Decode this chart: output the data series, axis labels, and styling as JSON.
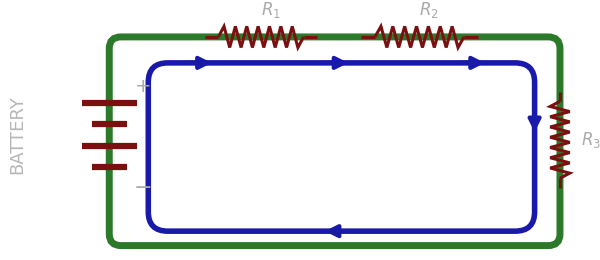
{
  "fig_width": 6.0,
  "fig_height": 2.6,
  "dpi": 100,
  "bg_color": "#ffffff",
  "green_color": "#2a7a2a",
  "blue_color": "#1a1aaa",
  "red_color": "#7a1010",
  "gray_color": "#aaaaaa",
  "lw_outer": 5.0,
  "lw_inner": 4.0,
  "lw_resistor": 2.2,
  "lw_battery": 4.5,
  "battery_label": "BATTERY",
  "R1_label": "$R_1$",
  "R2_label": "$R_2$",
  "R3_label": "$R_3$"
}
